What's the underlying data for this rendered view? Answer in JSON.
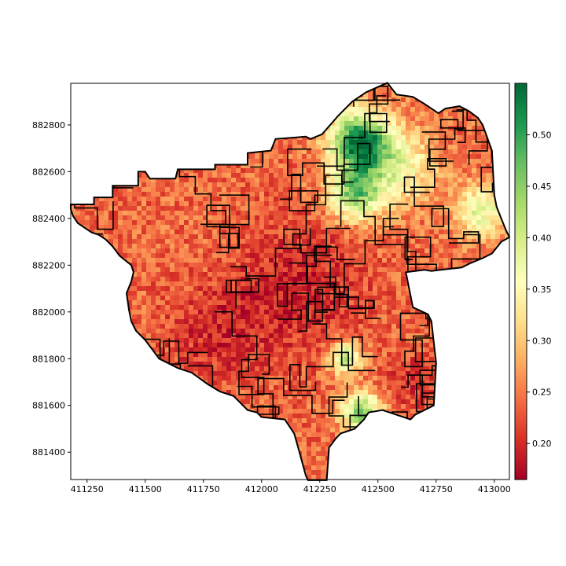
{
  "chart_data": {
    "type": "heatmap",
    "title": "",
    "xlabel": "",
    "ylabel": "",
    "xlim": [
      411180,
      413065
    ],
    "ylim": [
      881283,
      882978
    ],
    "x_ticks": [
      411250,
      411500,
      411750,
      412000,
      412250,
      412500,
      412750,
      413000
    ],
    "y_ticks": [
      881400,
      881600,
      881800,
      882000,
      882200,
      882400,
      882600,
      882800
    ],
    "colorbar": {
      "colormap": "RdYlGn",
      "range": [
        0.165,
        0.55
      ],
      "ticks": [
        0.2,
        0.25,
        0.3,
        0.35,
        0.4,
        0.45,
        0.5
      ],
      "colors": [
        "#a50026",
        "#d73027",
        "#f46d43",
        "#fdae61",
        "#fee08b",
        "#ffffbf",
        "#d9ef8b",
        "#a6d96a",
        "#66bd63",
        "#1a9850",
        "#006837"
      ]
    },
    "boundary_outline": [
      [
        411180,
        882460
      ],
      [
        411280,
        882460
      ],
      [
        411280,
        882490
      ],
      [
        411360,
        882490
      ],
      [
        411360,
        882540
      ],
      [
        411470,
        882540
      ],
      [
        411470,
        882600
      ],
      [
        411500,
        882600
      ],
      [
        411520,
        882570
      ],
      [
        411630,
        882570
      ],
      [
        411640,
        882610
      ],
      [
        411800,
        882610
      ],
      [
        411800,
        882630
      ],
      [
        411940,
        882630
      ],
      [
        411940,
        882680
      ],
      [
        412040,
        882690
      ],
      [
        412060,
        882740
      ],
      [
        412190,
        882750
      ],
      [
        412210,
        882740
      ],
      [
        412260,
        882760
      ],
      [
        412330,
        882840
      ],
      [
        412390,
        882900
      ],
      [
        412450,
        882940
      ],
      [
        412540,
        882980
      ],
      [
        412580,
        882930
      ],
      [
        412650,
        882920
      ],
      [
        412700,
        882890
      ],
      [
        412760,
        882850
      ],
      [
        412790,
        882870
      ],
      [
        412850,
        882880
      ],
      [
        412890,
        882860
      ],
      [
        412930,
        882830
      ],
      [
        412950,
        882800
      ],
      [
        412990,
        882690
      ],
      [
        413000,
        882500
      ],
      [
        413010,
        882450
      ],
      [
        413030,
        882400
      ],
      [
        413050,
        882350
      ],
      [
        413065,
        882320
      ],
      [
        413030,
        882300
      ],
      [
        412990,
        882250
      ],
      [
        412950,
        882230
      ],
      [
        412900,
        882210
      ],
      [
        412860,
        882190
      ],
      [
        412770,
        882180
      ],
      [
        412730,
        882175
      ],
      [
        412700,
        882180
      ],
      [
        412620,
        882170
      ],
      [
        412650,
        882020
      ],
      [
        412715,
        881990
      ],
      [
        412730,
        881960
      ],
      [
        412750,
        881780
      ],
      [
        412740,
        881600
      ],
      [
        412660,
        881560
      ],
      [
        412640,
        881540
      ],
      [
        412520,
        881580
      ],
      [
        412460,
        881570
      ],
      [
        412440,
        881540
      ],
      [
        412400,
        881500
      ],
      [
        412340,
        881480
      ],
      [
        412320,
        881460
      ],
      [
        412290,
        881420
      ],
      [
        412280,
        881280
      ],
      [
        412200,
        881280
      ],
      [
        412190,
        881300
      ],
      [
        412160,
        881410
      ],
      [
        412140,
        881480
      ],
      [
        412100,
        881540
      ],
      [
        412000,
        881550
      ],
      [
        411980,
        881570
      ],
      [
        411940,
        881580
      ],
      [
        411880,
        881640
      ],
      [
        411820,
        881660
      ],
      [
        411770,
        881690
      ],
      [
        411700,
        881740
      ],
      [
        411640,
        881760
      ],
      [
        411600,
        881780
      ],
      [
        411560,
        881800
      ],
      [
        411530,
        881840
      ],
      [
        411500,
        881880
      ],
      [
        411460,
        881920
      ],
      [
        411440,
        881960
      ],
      [
        411430,
        882010
      ],
      [
        411420,
        882080
      ],
      [
        411440,
        882130
      ],
      [
        411450,
        882170
      ],
      [
        411440,
        882200
      ],
      [
        411390,
        882240
      ],
      [
        411360,
        882280
      ],
      [
        411330,
        882310
      ],
      [
        411300,
        882330
      ],
      [
        411270,
        882340
      ],
      [
        411240,
        882360
      ],
      [
        411210,
        882380
      ],
      [
        411190,
        882410
      ],
      [
        411180,
        882440
      ]
    ],
    "high_value_zones": [
      {
        "x": 412420,
        "y": 882730,
        "r": 90,
        "value": 0.53
      },
      {
        "x": 412400,
        "y": 882510,
        "r": 80,
        "value": 0.44
      },
      {
        "x": 412580,
        "y": 882620,
        "r": 120,
        "value": 0.36
      },
      {
        "x": 412940,
        "y": 882430,
        "r": 80,
        "value": 0.38
      },
      {
        "x": 412360,
        "y": 881800,
        "r": 50,
        "value": 0.42
      },
      {
        "x": 412430,
        "y": 881570,
        "r": 60,
        "value": 0.46
      }
    ],
    "low_value_zones": [
      {
        "x": 412150,
        "y": 882100,
        "r": 200,
        "value": 0.19
      },
      {
        "x": 411800,
        "y": 881900,
        "r": 150,
        "value": 0.2
      },
      {
        "x": 412650,
        "y": 881700,
        "r": 80,
        "value": 0.2
      }
    ],
    "base_value": 0.24
  }
}
